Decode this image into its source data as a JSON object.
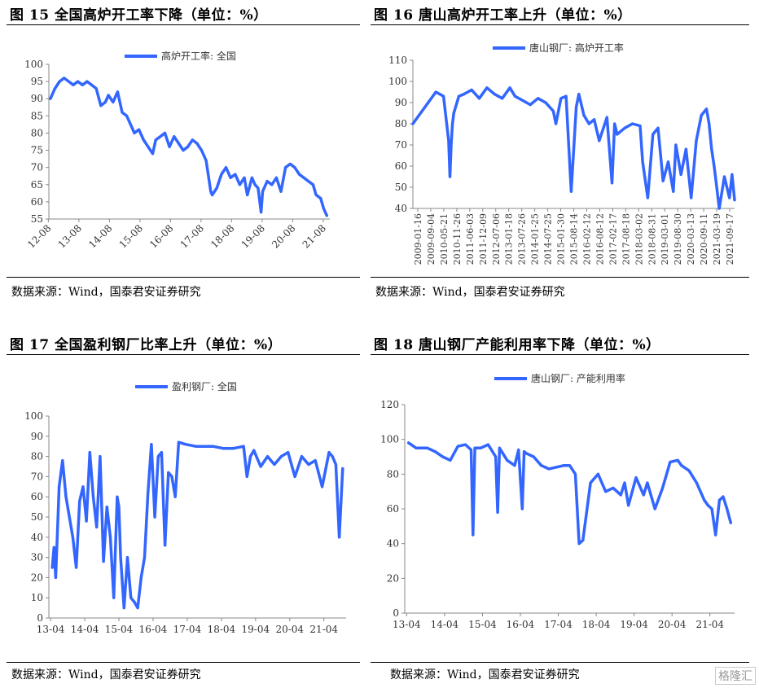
{
  "watermark": "格隆汇",
  "panels": [
    {
      "title": "图 15  全国高炉开工率下降（单位：%）",
      "source": "数据来源：Wind，国泰君安证券研究"
    },
    {
      "title": "图 16  唐山高炉开工率上升（单位：%）",
      "source": "数据来源：Wind，国泰君安证券研究"
    },
    {
      "title": "图 17  全国盈利钢厂比率上升（单位：%）",
      "source": "数据来源：Wind，国泰君安证券研究"
    },
    {
      "title": "图 18  唐山钢厂产能利用率下降（单位：%）",
      "source": "数据来源：Wind，国泰君安证券研究"
    }
  ],
  "chart_data": [
    {
      "type": "line",
      "title": "",
      "ylim": [
        55,
        100
      ],
      "yticks": [
        55,
        60,
        65,
        70,
        75,
        80,
        85,
        90,
        95,
        100
      ],
      "xlim": [
        2012.6,
        2021.8
      ],
      "xticks": [
        "12-08",
        "13-08",
        "14-08",
        "15-08",
        "16-08",
        "17-08",
        "18-08",
        "19-08",
        "20-08",
        "21-08"
      ],
      "xtick_rotation": -45,
      "legend_position": "top",
      "color": "#3366ff",
      "series": [
        {
          "name": "高炉开工率: 全国",
          "x": [
            2012.65,
            2012.8,
            2012.95,
            2013.1,
            2013.25,
            2013.4,
            2013.55,
            2013.7,
            2013.85,
            2014.0,
            2014.15,
            2014.3,
            2014.45,
            2014.55,
            2014.7,
            2014.85,
            2015.0,
            2015.15,
            2015.3,
            2015.4,
            2015.55,
            2015.7,
            2015.85,
            2016.0,
            2016.1,
            2016.25,
            2016.4,
            2016.55,
            2016.7,
            2016.85,
            2017.0,
            2017.15,
            2017.3,
            2017.45,
            2017.6,
            2017.75,
            2017.9,
            2017.95,
            2018.1,
            2018.25,
            2018.4,
            2018.55,
            2018.7,
            2018.85,
            2019.0,
            2019.1,
            2019.25,
            2019.35,
            2019.45,
            2019.55,
            2019.6,
            2019.75,
            2019.9,
            2020.05,
            2020.2,
            2020.35,
            2020.5,
            2020.65,
            2020.8,
            2020.95,
            2021.1,
            2021.25,
            2021.35,
            2021.5,
            2021.6,
            2021.7
          ],
          "y": [
            90,
            93,
            95,
            96,
            95,
            94,
            95,
            94,
            95,
            94,
            93,
            88,
            89,
            91,
            89,
            92,
            86,
            85,
            82,
            80,
            81,
            78,
            76,
            74,
            78,
            79,
            80,
            76,
            79,
            77,
            75,
            76,
            78,
            77,
            75,
            72,
            63,
            62,
            64,
            68,
            70,
            67,
            68,
            65,
            67,
            62,
            67,
            65,
            64,
            57,
            63,
            66,
            65,
            67,
            63,
            70,
            71,
            70,
            68,
            67,
            66,
            65,
            62,
            61,
            58,
            56
          ]
        }
      ]
    },
    {
      "type": "line",
      "title": "",
      "ylim": [
        40,
        110
      ],
      "yticks": [
        40,
        50,
        60,
        70,
        80,
        90,
        100,
        110
      ],
      "xticks": [
        "2009-01-16",
        "2009-09-04",
        "2010-05-21",
        "2010-11-26",
        "2011-06-03",
        "2011-12-09",
        "2012-07-06",
        "2013-01-18",
        "2013-07-26",
        "2014-01-25",
        "2014-07-25",
        "2015-01-30",
        "2015-08-14",
        "2016-02-12",
        "2016-08-12",
        "2017-02-17",
        "2017-08-18",
        "2018-03-02",
        "2018-08-31",
        "2019-03-01",
        "2019-08-30",
        "2020-03-13",
        "2020-09-11",
        "2021-03-19",
        "2021-09-17"
      ],
      "xtick_rotation": -90,
      "legend_position": "top",
      "color": "#3366ff",
      "series": [
        {
          "name": "唐山钢厂: 高炉开工率",
          "x": [
            2009.0,
            2009.3,
            2009.6,
            2009.9,
            2010.2,
            2010.4,
            2010.45,
            2010.5,
            2010.55,
            2010.6,
            2010.8,
            2011.0,
            2011.3,
            2011.6,
            2011.9,
            2012.2,
            2012.5,
            2012.8,
            2013.0,
            2013.3,
            2013.6,
            2013.9,
            2014.2,
            2014.5,
            2014.6,
            2014.8,
            2015.0,
            2015.2,
            2015.4,
            2015.5,
            2015.7,
            2015.9,
            2016.1,
            2016.3,
            2016.6,
            2016.8,
            2016.9,
            2017.0,
            2017.3,
            2017.6,
            2017.9,
            2018.0,
            2018.2,
            2018.4,
            2018.6,
            2018.8,
            2019.0,
            2019.2,
            2019.3,
            2019.5,
            2019.7,
            2019.9,
            2020.1,
            2020.3,
            2020.5,
            2020.6,
            2020.7,
            2020.8,
            2020.9,
            2021.0,
            2021.2,
            2021.4,
            2021.5,
            2021.6
          ],
          "y": [
            80,
            85,
            90,
            95,
            93,
            72,
            55,
            70,
            80,
            85,
            93,
            94,
            96,
            92,
            97,
            94,
            92,
            97,
            93,
            91,
            89,
            92,
            90,
            86,
            80,
            92,
            93,
            48,
            88,
            94,
            84,
            80,
            82,
            72,
            83,
            52,
            80,
            75,
            78,
            80,
            79,
            62,
            45,
            75,
            78,
            53,
            62,
            48,
            70,
            56,
            68,
            45,
            72,
            84,
            87,
            80,
            68,
            60,
            50,
            40,
            55,
            45,
            56,
            44
          ]
        }
      ]
    },
    {
      "type": "line",
      "title": "",
      "ylim": [
        0,
        100
      ],
      "yticks": [
        0,
        10,
        20,
        30,
        40,
        50,
        60,
        70,
        80,
        90,
        100
      ],
      "xlim": [
        2013.2,
        2021.9
      ],
      "xticks": [
        "13-04",
        "14-04",
        "15-04",
        "16-04",
        "17-04",
        "18-04",
        "19-04",
        "20-04",
        "21-04"
      ],
      "legend_position": "top",
      "color": "#3366ff",
      "series": [
        {
          "name": "盈利钢厂: 全国",
          "x": [
            2013.3,
            2013.35,
            2013.4,
            2013.5,
            2013.6,
            2013.7,
            2013.8,
            2013.9,
            2014.0,
            2014.1,
            2014.2,
            2014.3,
            2014.4,
            2014.5,
            2014.6,
            2014.7,
            2014.8,
            2014.9,
            2015.0,
            2015.1,
            2015.2,
            2015.25,
            2015.3,
            2015.4,
            2015.5,
            2015.6,
            2015.7,
            2015.8,
            2015.9,
            2016.0,
            2016.1,
            2016.2,
            2016.3,
            2016.4,
            2016.5,
            2016.6,
            2016.7,
            2016.8,
            2016.9,
            2017.0,
            2017.2,
            2017.5,
            2017.8,
            2018.0,
            2018.3,
            2018.6,
            2018.9,
            2019.0,
            2019.1,
            2019.2,
            2019.4,
            2019.6,
            2019.8,
            2020.0,
            2020.2,
            2020.4,
            2020.6,
            2020.8,
            2021.0,
            2021.2,
            2021.4,
            2021.5,
            2021.6,
            2021.7,
            2021.8
          ],
          "y": [
            25,
            35,
            20,
            65,
            78,
            60,
            50,
            40,
            25,
            58,
            65,
            48,
            82,
            60,
            45,
            80,
            28,
            55,
            40,
            10,
            60,
            55,
            30,
            5,
            30,
            10,
            8,
            5,
            20,
            30,
            62,
            86,
            50,
            80,
            82,
            36,
            72,
            70,
            60,
            87,
            86,
            85,
            85,
            85,
            84,
            84,
            85,
            70,
            80,
            83,
            75,
            80,
            76,
            80,
            82,
            70,
            80,
            76,
            78,
            65,
            82,
            80,
            76,
            40,
            74
          ]
        }
      ]
    },
    {
      "type": "line",
      "title": "",
      "ylim": [
        0,
        120
      ],
      "yticks": [
        0,
        20,
        40,
        60,
        80,
        100,
        120
      ],
      "xlim": [
        2013.2,
        2021.9
      ],
      "xticks": [
        "13-04",
        "14-04",
        "15-04",
        "16-04",
        "17-04",
        "18-04",
        "19-04",
        "20-04",
        "21-04"
      ],
      "legend_position": "top",
      "color": "#3366ff",
      "series": [
        {
          "name": "唐山钢厂: 产能利用率",
          "x": [
            2013.3,
            2013.5,
            2013.8,
            2014.0,
            2014.2,
            2014.4,
            2014.6,
            2014.8,
            2014.95,
            2015.0,
            2015.05,
            2015.2,
            2015.4,
            2015.6,
            2015.65,
            2015.7,
            2015.9,
            2016.1,
            2016.2,
            2016.3,
            2016.35,
            2016.4,
            2016.6,
            2016.8,
            2017.0,
            2017.2,
            2017.4,
            2017.55,
            2017.7,
            2017.8,
            2017.9,
            2018.1,
            2018.3,
            2018.5,
            2018.7,
            2018.9,
            2019.0,
            2019.1,
            2019.3,
            2019.5,
            2019.6,
            2019.8,
            2020.0,
            2020.2,
            2020.4,
            2020.5,
            2020.7,
            2020.9,
            2021.1,
            2021.2,
            2021.3,
            2021.4,
            2021.5,
            2021.6,
            2021.7,
            2021.8
          ],
          "y": [
            98,
            95,
            95,
            93,
            90,
            88,
            96,
            97,
            94,
            45,
            95,
            95,
            97,
            90,
            58,
            95,
            88,
            85,
            94,
            60,
            93,
            92,
            90,
            85,
            83,
            84,
            85,
            85,
            80,
            40,
            42,
            75,
            80,
            70,
            72,
            68,
            75,
            62,
            78,
            68,
            75,
            60,
            72,
            87,
            88,
            85,
            82,
            75,
            65,
            62,
            60,
            45,
            65,
            67,
            60,
            52
          ]
        }
      ]
    }
  ]
}
